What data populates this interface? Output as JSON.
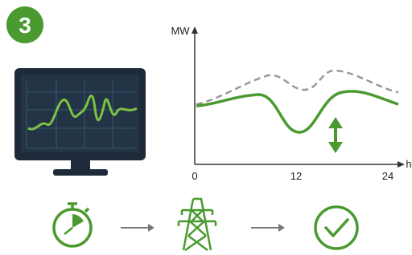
{
  "badge": "3",
  "axis": {
    "y_label": "MW",
    "x_label": "h",
    "x_ticks": [
      "0",
      "12",
      "24"
    ]
  }
}
